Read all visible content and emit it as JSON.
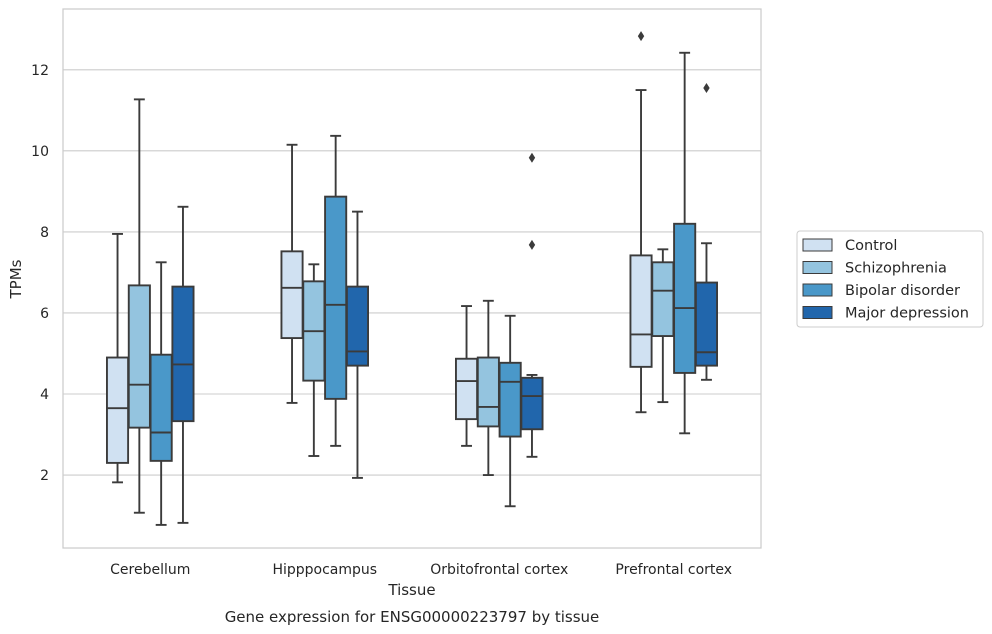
{
  "chart_data": {
    "type": "box",
    "xlabel": "Tissue",
    "ylabel": "TPMs",
    "caption": "Gene expression for ENSG00000223797 by tissue",
    "categories": [
      "Cerebellum",
      "Hipppocampus",
      "Orbitofrontal cortex",
      "Prefrontal cortex"
    ],
    "yticks": [
      2,
      4,
      6,
      8,
      10,
      12
    ],
    "ylim": [
      0.2,
      13.5
    ],
    "grid": "horizontal",
    "legend_position": "right",
    "series": [
      {
        "name": "Control",
        "color": "#d0e1f2",
        "boxes": [
          {
            "whisker_low": 1.82,
            "q1": 2.3,
            "median": 3.65,
            "q3": 4.9,
            "whisker_high": 7.95,
            "outliers": []
          },
          {
            "whisker_low": 3.78,
            "q1": 5.38,
            "median": 6.62,
            "q3": 7.52,
            "whisker_high": 10.15,
            "outliers": []
          },
          {
            "whisker_low": 2.72,
            "q1": 3.38,
            "median": 4.32,
            "q3": 4.87,
            "whisker_high": 6.17,
            "outliers": []
          },
          {
            "whisker_low": 3.55,
            "q1": 4.67,
            "median": 5.47,
            "q3": 7.42,
            "whisker_high": 11.5,
            "outliers": [
              12.83
            ]
          }
        ]
      },
      {
        "name": "Schizophrenia",
        "color": "#94c4df",
        "boxes": [
          {
            "whisker_low": 1.07,
            "q1": 3.17,
            "median": 4.23,
            "q3": 6.68,
            "whisker_high": 11.27,
            "outliers": []
          },
          {
            "whisker_low": 2.47,
            "q1": 4.33,
            "median": 5.55,
            "q3": 6.78,
            "whisker_high": 7.2,
            "outliers": []
          },
          {
            "whisker_low": 2.0,
            "q1": 3.2,
            "median": 3.68,
            "q3": 4.9,
            "whisker_high": 6.3,
            "outliers": []
          },
          {
            "whisker_low": 3.8,
            "q1": 5.43,
            "median": 6.55,
            "q3": 7.25,
            "whisker_high": 7.57,
            "outliers": []
          }
        ]
      },
      {
        "name": "Bipolar disorder",
        "color": "#4a98c9",
        "boxes": [
          {
            "whisker_low": 0.77,
            "q1": 2.35,
            "median": 3.05,
            "q3": 4.97,
            "whisker_high": 7.25,
            "outliers": []
          },
          {
            "whisker_low": 2.72,
            "q1": 3.88,
            "median": 6.2,
            "q3": 8.87,
            "whisker_high": 10.37,
            "outliers": []
          },
          {
            "whisker_low": 1.23,
            "q1": 2.95,
            "median": 4.3,
            "q3": 4.77,
            "whisker_high": 5.93,
            "outliers": []
          },
          {
            "whisker_low": 3.03,
            "q1": 4.52,
            "median": 6.12,
            "q3": 8.2,
            "whisker_high": 12.42,
            "outliers": []
          }
        ]
      },
      {
        "name": "Major depression",
        "color": "#2166ac",
        "boxes": [
          {
            "whisker_low": 0.82,
            "q1": 3.33,
            "median": 4.73,
            "q3": 6.65,
            "whisker_high": 8.62,
            "outliers": []
          },
          {
            "whisker_low": 1.93,
            "q1": 4.7,
            "median": 5.05,
            "q3": 6.65,
            "whisker_high": 8.5,
            "outliers": []
          },
          {
            "whisker_low": 2.45,
            "q1": 3.13,
            "median": 3.95,
            "q3": 4.4,
            "whisker_high": 4.47,
            "outliers": [
              7.68,
              9.83
            ]
          },
          {
            "whisker_low": 4.35,
            "q1": 4.7,
            "median": 5.03,
            "q3": 6.75,
            "whisker_high": 7.72,
            "outliers": [
              11.55
            ]
          }
        ]
      }
    ]
  }
}
